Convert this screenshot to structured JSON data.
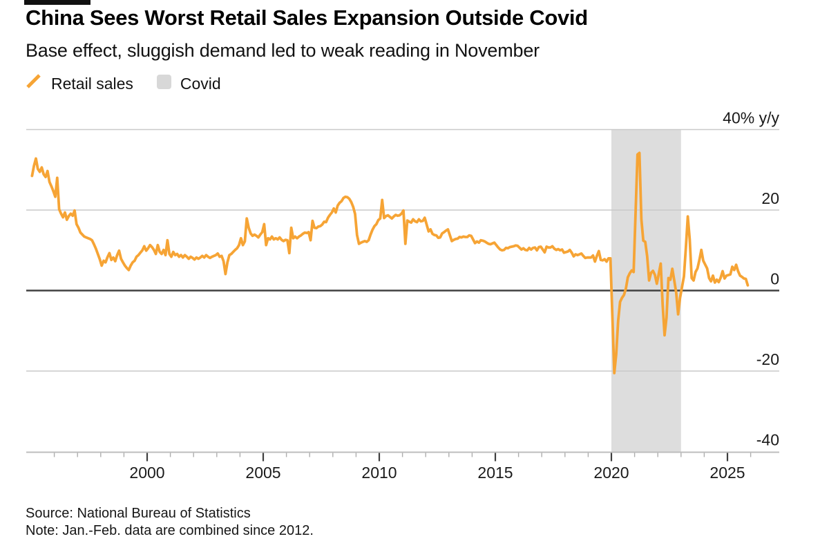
{
  "header": {
    "title": "China Sees Worst Retail Sales Expansion Outside Covid",
    "subtitle": "Base effect, sluggish demand led to weak reading in November"
  },
  "legend": {
    "items": [
      {
        "label": "Retail sales",
        "type": "line",
        "color": "#F6A435"
      },
      {
        "label": "Covid",
        "type": "band",
        "color": "#D8D8D8"
      }
    ]
  },
  "footer": {
    "source": "Source: National Bureau of Statistics",
    "note": "Note: Jan.-Feb. data are combined since 2012."
  },
  "chart_data": {
    "type": "line",
    "title": "China Sees Worst Retail Sales Expansion Outside Covid",
    "subtitle": "Base effect, sluggish demand led to weak reading in November",
    "unit_label": "40% y/y",
    "ylim": [
      -40,
      40
    ],
    "yticks": [
      {
        "value": 40,
        "label": "40% y/y"
      },
      {
        "value": 20,
        "label": "20"
      },
      {
        "value": 0,
        "label": "0"
      },
      {
        "value": -20,
        "label": "-20"
      },
      {
        "value": -40,
        "label": "-40"
      }
    ],
    "xticks": [
      2000,
      2005,
      2010,
      2015,
      2020,
      2025
    ],
    "x_minor_start": 1996,
    "x_minor_end": 2026,
    "xlim": [
      1994.9,
      2026.3
    ],
    "grid": "horizontal",
    "zero_line": true,
    "legend_position": "top-left",
    "covid_band": {
      "from": 2020.0,
      "to": 2023.0,
      "label": "Covid",
      "color": "#DDDDDD"
    },
    "jan_feb_combined_since": 2012,
    "colors": {
      "line": "#F6A435",
      "band": "#DDDDDD",
      "legend_band": "#D8D8D8",
      "grid": "#C9C9C9",
      "zero_line": "#404040",
      "axis": "#BDBDBD",
      "tick_minor": "#ADADAD",
      "tick_major": "#3E3E3E",
      "text": "#1A1A1A"
    },
    "series": [
      {
        "name": "Retail sales",
        "color": "#F6A435",
        "unit": "% y/y",
        "monthly_yoy_pct": {
          "1995": [
            28.5,
            31.0,
            32.8,
            30.2,
            29.5,
            30.6,
            28.9,
            28.2,
            29.7,
            27.0,
            25.9,
            24.7
          ],
          "1996": [
            23.3,
            28.0,
            20.2,
            19.1,
            18.2,
            19.4,
            17.6,
            18.5,
            19.1,
            18.6,
            19.9,
            16.5
          ],
          "1997": [
            15.6,
            14.4,
            13.9,
            13.4,
            13.2,
            13.0,
            12.8,
            12.5,
            11.5,
            10.4,
            9.1,
            7.8
          ],
          "1998": [
            6.2,
            7.4,
            7.0,
            8.3,
            9.3,
            7.6,
            8.2,
            7.3,
            8.8,
            9.9,
            7.9,
            7.0
          ],
          "1999": [
            6.2,
            5.6,
            5.1,
            6.2,
            7.0,
            7.4,
            8.4,
            8.8,
            9.4,
            10.0,
            11.0,
            9.9
          ],
          "2000": [
            10.5,
            11.3,
            10.8,
            10.1,
            9.1,
            11.3,
            9.6,
            9.1,
            10.1,
            8.8,
            12.5,
            9.1
          ],
          "2001": [
            8.4,
            9.6,
            8.8,
            9.1,
            8.4,
            8.8,
            8.2,
            8.8,
            8.4,
            7.9,
            8.4,
            8.1
          ],
          "2002": [
            7.7,
            8.2,
            7.9,
            8.2,
            8.6,
            8.2,
            8.8,
            8.4,
            8.1,
            8.4,
            8.6,
            8.8
          ],
          "2003": [
            9.2,
            8.4,
            8.6,
            7.3,
            4.1,
            7.0,
            8.8,
            9.1,
            9.6,
            10.1,
            10.5,
            11.3
          ],
          "2004": [
            13.0,
            11.3,
            12.2,
            17.9,
            15.6,
            14.2,
            13.6,
            13.9,
            13.6,
            13.2,
            13.9,
            14.5
          ],
          "2005": [
            16.5,
            11.3,
            13.0,
            12.7,
            13.4,
            12.7,
            13.0,
            12.7,
            13.2,
            12.6,
            12.3,
            12.6
          ],
          "2006": [
            12.5,
            9.3,
            15.6,
            13.0,
            13.4,
            13.0,
            13.4,
            13.7,
            14.1,
            14.4,
            14.3,
            14.5
          ],
          "2007": [
            12.5,
            17.3,
            15.6,
            15.5,
            15.9,
            16.0,
            16.4,
            17.1,
            17.0,
            18.1,
            18.8,
            19.4
          ],
          "2008": [
            20.4,
            19.4,
            21.1,
            21.8,
            22.2,
            23.0,
            23.3,
            23.2,
            22.8,
            22.0,
            20.8,
            19.0
          ],
          "2009": [
            13.8,
            11.6,
            11.9,
            12.1,
            12.3,
            12.1,
            12.5,
            13.9,
            15.1,
            16.0,
            16.5,
            17.5
          ],
          "2010": [
            17.9,
            22.5,
            18.0,
            18.5,
            18.7,
            18.3,
            17.9,
            18.4,
            18.8,
            18.6,
            18.7,
            19.1
          ],
          "2011": [
            19.9,
            11.6,
            17.4,
            17.1,
            16.9,
            17.7,
            17.2,
            17.0,
            17.7,
            17.2,
            17.3,
            18.1
          ],
          "2012": [
            14.7,
            15.2,
            14.1,
            13.8,
            13.7,
            13.1,
            13.2,
            14.2,
            14.5,
            14.9,
            15.2
          ],
          "2013": [
            12.3,
            12.6,
            12.8,
            12.9,
            13.3,
            13.2,
            13.4,
            13.3,
            13.3,
            13.7,
            13.6
          ],
          "2014": [
            11.8,
            12.2,
            11.9,
            12.5,
            12.4,
            12.2,
            11.9,
            11.6,
            11.5,
            11.7,
            11.9
          ],
          "2015": [
            10.7,
            10.2,
            10.0,
            10.1,
            10.6,
            10.5,
            10.8,
            10.9,
            11.0,
            11.2,
            11.1
          ],
          "2016": [
            10.2,
            10.5,
            10.1,
            10.0,
            10.6,
            10.2,
            10.6,
            10.7,
            10.0,
            10.8,
            10.9
          ],
          "2017": [
            9.5,
            10.9,
            10.7,
            10.7,
            11.0,
            10.4,
            10.1,
            10.3,
            10.0,
            10.2,
            9.4
          ],
          "2018": [
            9.7,
            10.1,
            9.4,
            8.5,
            9.0,
            8.8,
            9.0,
            9.2,
            8.6,
            8.1,
            8.2
          ],
          "2019": [
            8.2,
            8.7,
            7.2,
            8.6,
            9.8,
            7.6,
            7.5,
            7.8,
            7.2,
            8.0,
            8.0
          ],
          "2020": [
            -20.5,
            -15.8,
            -7.5,
            -2.8,
            -1.8,
            -1.1,
            0.5,
            3.3,
            4.3,
            5.0,
            4.6
          ],
          "2021": [
            33.8,
            34.2,
            17.7,
            12.4,
            12.1,
            8.5,
            2.5,
            4.4,
            4.9,
            3.9,
            1.7
          ],
          "2022": [
            6.7,
            -3.5,
            -11.1,
            -6.7,
            3.1,
            2.7,
            5.4,
            2.5,
            -0.5,
            -5.9,
            -1.8
          ],
          "2023": [
            3.5,
            10.6,
            18.4,
            12.7,
            3.1,
            2.5,
            4.6,
            5.5,
            7.6,
            10.1,
            7.4
          ],
          "2024": [
            5.5,
            3.1,
            2.3,
            3.7,
            2.0,
            2.7,
            2.1,
            3.2,
            4.8,
            3.0,
            3.7
          ],
          "2025": [
            4.0,
            5.9,
            5.1,
            6.4,
            4.8,
            3.7,
            3.4,
            3.0,
            2.9,
            1.3
          ]
        }
      }
    ]
  }
}
